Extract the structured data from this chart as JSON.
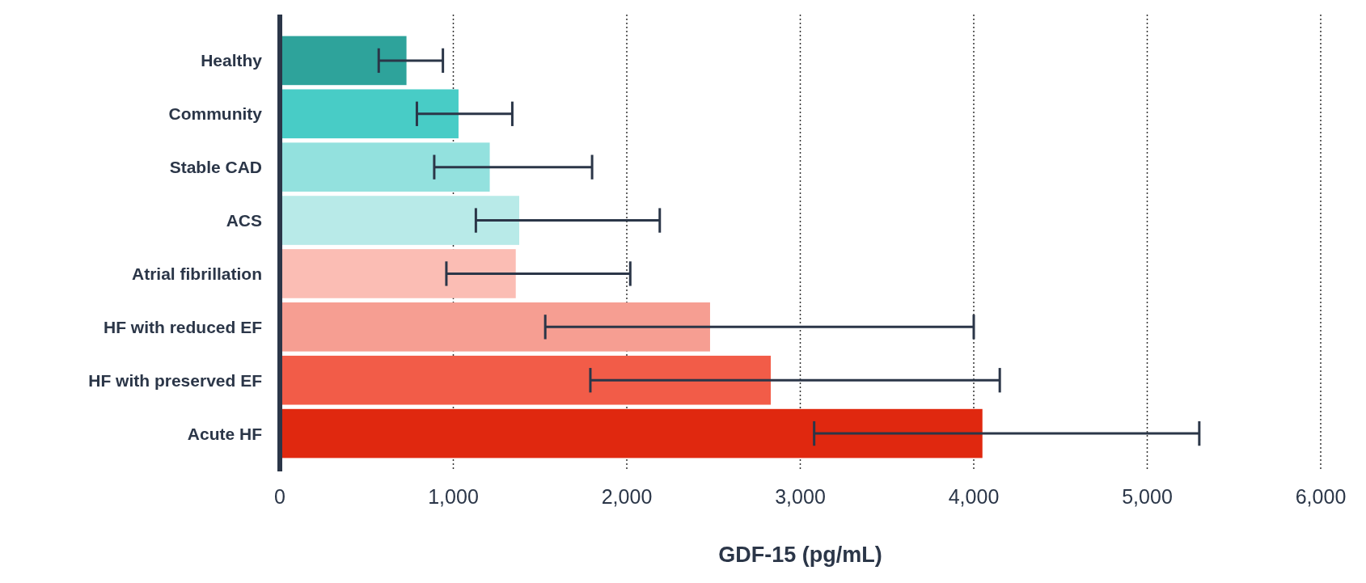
{
  "chart_data": {
    "type": "bar",
    "orientation": "horizontal",
    "xlabel": "GDF-15 (pg/mL)",
    "categories": [
      "Healthy",
      "Community",
      "Stable CAD",
      "ACS",
      "Atrial fibrillation",
      "HF with reduced EF",
      "HF with preserved EF",
      "Acute HF"
    ],
    "values": [
      730,
      1030,
      1210,
      1380,
      1360,
      2480,
      2830,
      4050
    ],
    "colors": [
      "#2ea39b",
      "#48ccc6",
      "#93e1de",
      "#b8eae8",
      "#fbbdb4",
      "#f69e92",
      "#f25c48",
      "#e0280f"
    ],
    "errors": [
      [
        570,
        940
      ],
      [
        790,
        1340
      ],
      [
        890,
        1800
      ],
      [
        1130,
        2190
      ],
      [
        960,
        2020
      ],
      [
        1530,
        4000
      ],
      [
        1790,
        4150
      ],
      [
        3080,
        5300
      ]
    ],
    "xlim": [
      0,
      6000
    ],
    "xticks": [
      0,
      {
        "value": 1000,
        "label": "1,000"
      },
      {
        "value": 2000,
        "label": "2,000"
      },
      {
        "value": 3000,
        "label": "3,000"
      },
      {
        "value": 4000,
        "label": "4,000"
      },
      {
        "value": 5000,
        "label": "5,000"
      },
      {
        "value": 6000,
        "label": "6,000"
      }
    ],
    "grid": "x"
  }
}
